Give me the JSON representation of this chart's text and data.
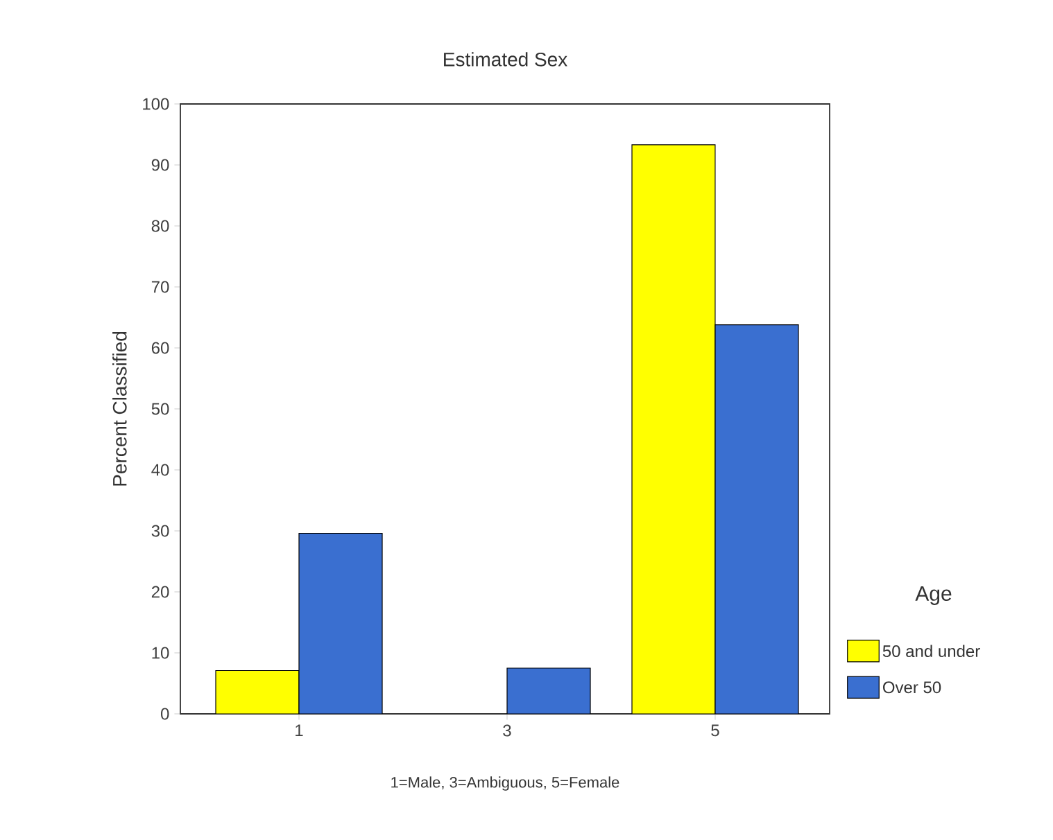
{
  "chart_data": {
    "type": "bar",
    "title": "Estimated Sex",
    "xlabel": "1=Male, 3=Ambiguous, 5=Female",
    "ylabel": "Percent Classified",
    "legend_title": "Age",
    "categories": [
      "1",
      "3",
      "5"
    ],
    "series": [
      {
        "name": "50 and under",
        "color": "#ffff00",
        "values": [
          7.1,
          null,
          93.3
        ]
      },
      {
        "name": "Over 50",
        "color": "#3a6fd0",
        "values": [
          29.6,
          7.5,
          63.8
        ]
      }
    ],
    "ylim": [
      0,
      100
    ],
    "yticks": [
      0,
      10,
      20,
      30,
      40,
      50,
      60,
      70,
      80,
      90,
      100
    ],
    "grid": false,
    "legend": "right"
  }
}
